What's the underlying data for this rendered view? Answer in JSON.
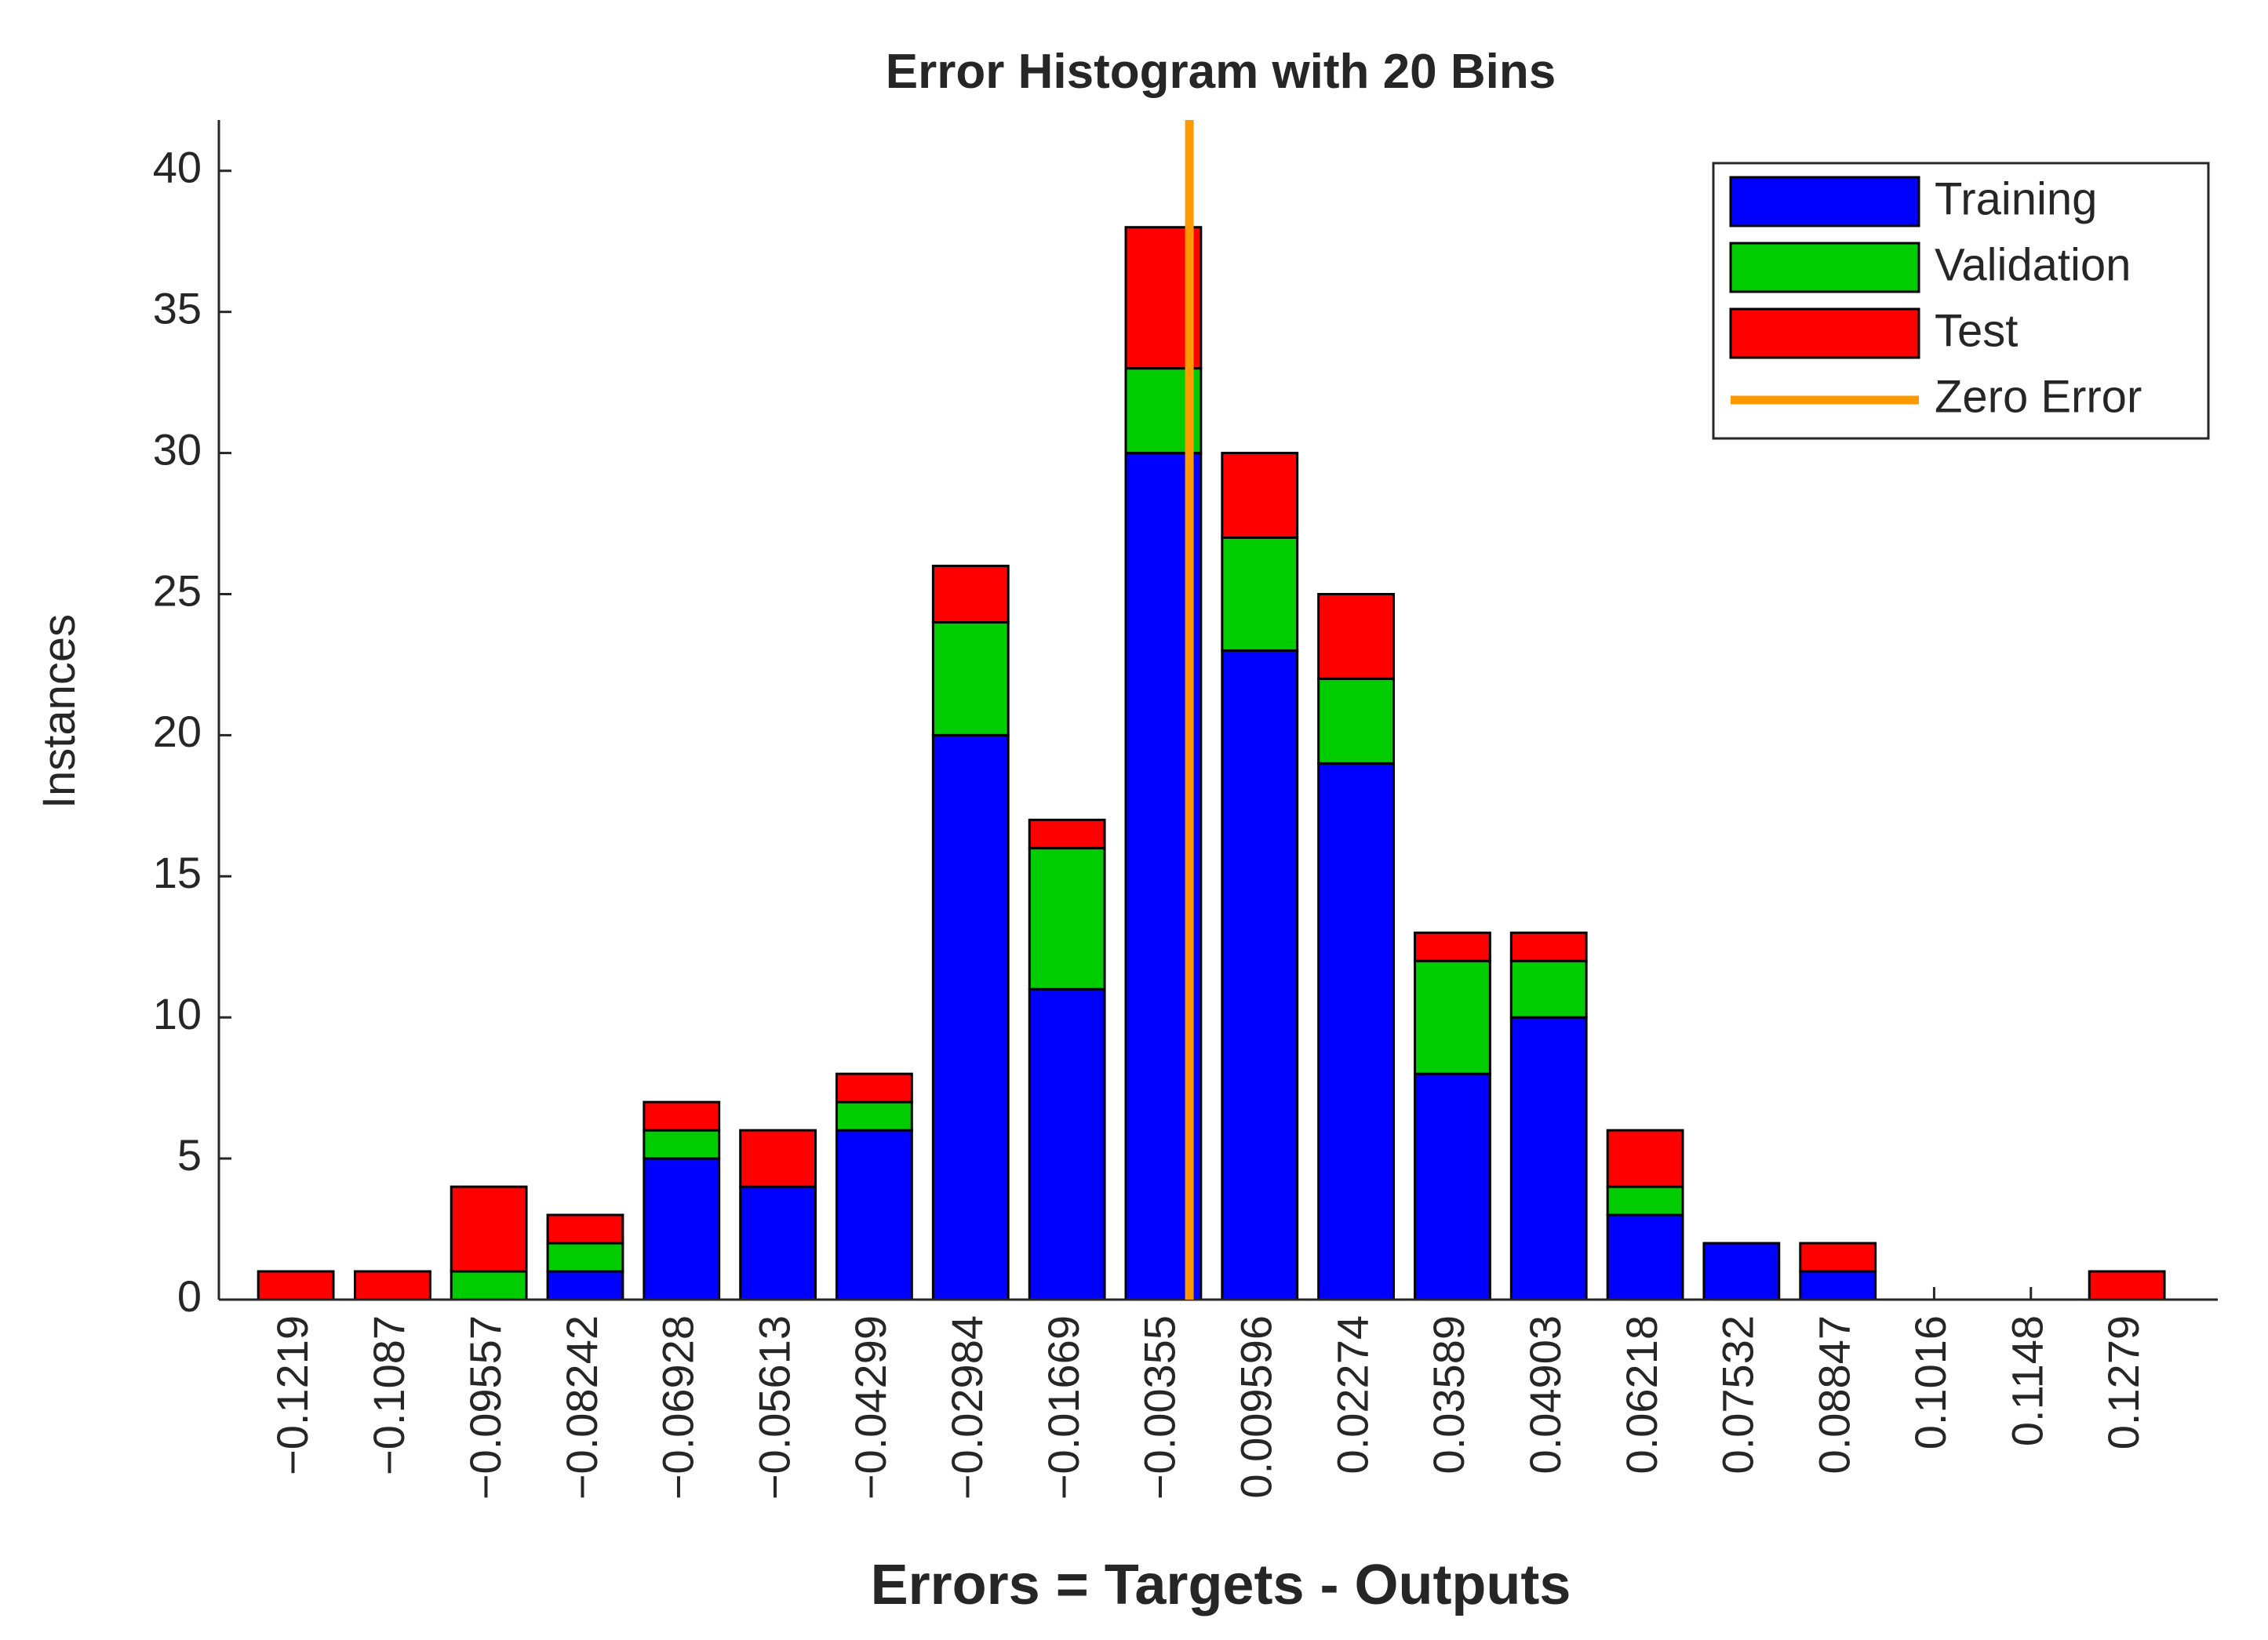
{
  "chart_data": {
    "type": "stacked_histogram",
    "title": "Error Histogram with 20 Bins",
    "x_label": "Errors = Targets - Outputs",
    "y_label": "Instances",
    "x": [
      -0.1219,
      -0.1087,
      -0.09557,
      -0.08242,
      -0.06928,
      -0.05613,
      -0.04299,
      -0.02984,
      -0.01669,
      -0.00355,
      0.009596,
      0.02274,
      0.03589,
      0.04903,
      0.06218,
      0.07532,
      0.08847,
      0.1016,
      0.1148,
      0.1279
    ],
    "series": [
      {
        "name": "Training",
        "color": "#0000ff",
        "values": [
          0,
          0,
          0,
          1,
          5,
          4,
          6,
          20,
          11,
          30,
          23,
          19,
          8,
          10,
          3,
          2,
          1,
          0,
          0,
          0
        ]
      },
      {
        "name": "Validation",
        "color": "#00cc00",
        "values": [
          0,
          0,
          1,
          1,
          1,
          0,
          1,
          4,
          5,
          3,
          4,
          3,
          4,
          2,
          1,
          0,
          0,
          0,
          0,
          0
        ]
      },
      {
        "name": "Test",
        "color": "#ff0000",
        "values": [
          1,
          1,
          3,
          1,
          1,
          2,
          1,
          2,
          1,
          5,
          3,
          3,
          1,
          1,
          2,
          0,
          1,
          0,
          0,
          1
        ]
      }
    ],
    "reference_line": {
      "name": "Zero Error",
      "value": 0,
      "color": "#ff9900"
    },
    "xlim": [
      -0.1324,
      0.1403
    ],
    "xticks": [
      {
        "value": -0.1219,
        "label": "−0.1219"
      },
      {
        "value": -0.1087,
        "label": "−0.1087"
      },
      {
        "value": -0.09557,
        "label": "−0.09557"
      },
      {
        "value": -0.08242,
        "label": "−0.08242"
      },
      {
        "value": -0.06928,
        "label": "−0.06928"
      },
      {
        "value": -0.05613,
        "label": "−0.05613"
      },
      {
        "value": -0.04299,
        "label": "−0.04299"
      },
      {
        "value": -0.02984,
        "label": "−0.02984"
      },
      {
        "value": -0.01669,
        "label": "−0.01669"
      },
      {
        "value": -0.00355,
        "label": "−0.00355"
      },
      0.009596,
      0.02274,
      0.03589,
      0.04903,
      0.06218,
      0.07532,
      0.08847,
      0.1016,
      0.1148,
      0.1279
    ],
    "ylim": [
      0,
      41.8
    ],
    "yticks": [
      0,
      5,
      10,
      15,
      20,
      25,
      30,
      35,
      40
    ],
    "legend_position": "upper right"
  }
}
